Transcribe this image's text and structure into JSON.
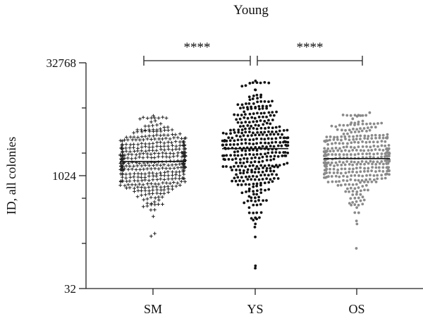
{
  "chart_data": {
    "type": "scatter",
    "title": "Young",
    "ylabel": "ID, all colonies",
    "xlabel": "",
    "yscale": "log2",
    "ylim": [
      32,
      32768
    ],
    "yticks_labeled": [
      "32768",
      "1024",
      "32"
    ],
    "categories": [
      "SM",
      "YS",
      "OS"
    ],
    "series": [
      {
        "category": "SM",
        "marker": "plus",
        "color": "#222222",
        "median": 1580,
        "n": 420,
        "min": 160,
        "max": 6500
      },
      {
        "category": "YS",
        "marker": "dot",
        "color": "#111111",
        "median": 2350,
        "n": 380,
        "min": 60,
        "max": 19000
      },
      {
        "category": "OS",
        "marker": "dot",
        "color": "#8a8a8a",
        "median": 1730,
        "n": 400,
        "min": 110,
        "max": 7000
      }
    ],
    "annotations": [
      {
        "from": "SM",
        "to": "YS",
        "label": "****"
      },
      {
        "from": "YS",
        "to": "OS",
        "label": "****"
      }
    ]
  }
}
